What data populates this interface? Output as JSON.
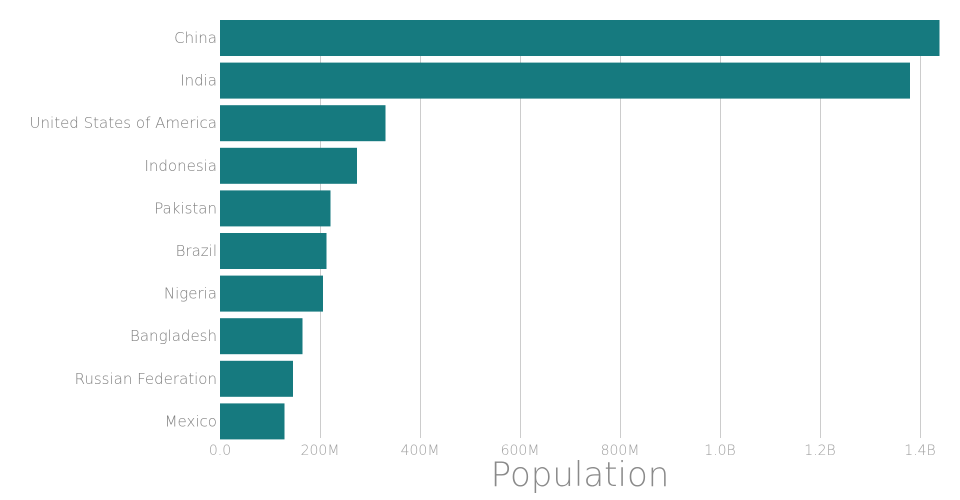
{
  "chart_data": {
    "type": "bar",
    "orientation": "horizontal",
    "categories": [
      "China",
      "India",
      "United States of America",
      "Indonesia",
      "Pakistan",
      "Brazil",
      "Nigeria",
      "Bangladesh",
      "Russian Federation",
      "Mexico"
    ],
    "values": [
      1439000000,
      1380000000,
      331000000,
      274000000,
      221000000,
      213000000,
      206000000,
      165000000,
      146000000,
      129000000
    ],
    "xlabel": "Population",
    "ylabel": "",
    "xlim": [
      0,
      1440000000
    ],
    "x_ticks": [
      0,
      200000000,
      400000000,
      600000000,
      800000000,
      1000000000,
      1200000000,
      1400000000
    ],
    "x_tick_labels": [
      "0.0",
      "200M",
      "400M",
      "600M",
      "800M",
      "1.0B",
      "1.2B",
      "1.4B"
    ],
    "grid": "vertical",
    "bar_color": "#167a7f",
    "grid_color": "#cccccc"
  }
}
